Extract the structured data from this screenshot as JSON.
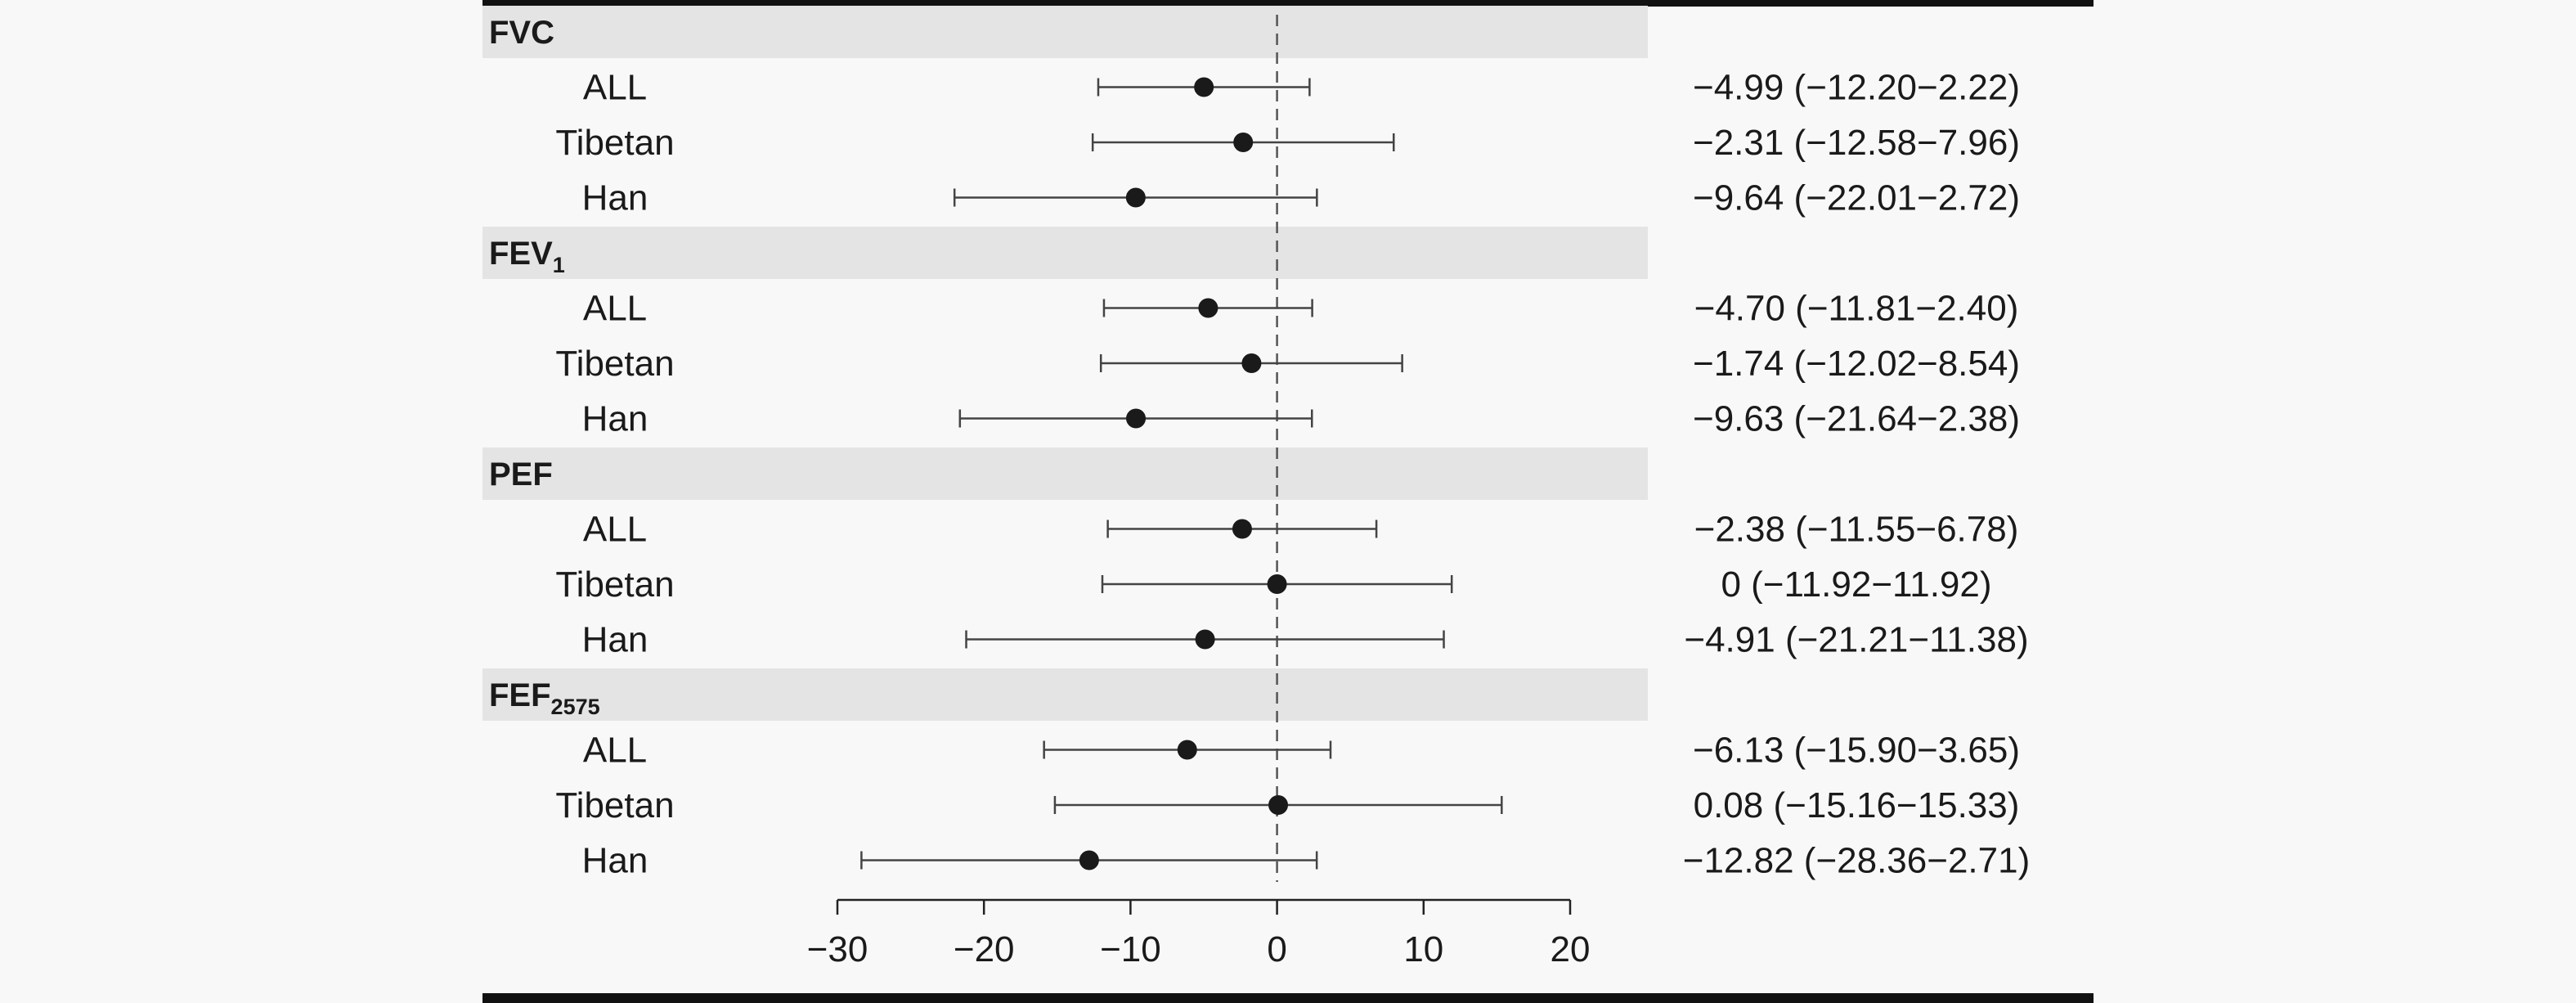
{
  "chart_data": {
    "type": "forest",
    "title": "",
    "xlabel": "",
    "ylabel": "",
    "xlim": [
      -30,
      20
    ],
    "xticks": [
      -30,
      -20,
      -10,
      0,
      10,
      20
    ],
    "xtick_labels": [
      "−30",
      "−20",
      "−10",
      "0",
      "10",
      "20"
    ],
    "reference_line": 0,
    "grid": false,
    "colors": {
      "point": "#1a1a1a",
      "header_band": "#e4e4e4",
      "frame": "#111111",
      "background": "#f8f8f8"
    },
    "groups": [
      {
        "header": "FVC",
        "header_sub": "",
        "rows": [
          {
            "label": "ALL",
            "estimate": -4.99,
            "lower": -12.2,
            "upper": 2.22,
            "ci_text": "−4.99 (−12.20−2.22)"
          },
          {
            "label": "Tibetan",
            "estimate": -2.31,
            "lower": -12.58,
            "upper": 7.96,
            "ci_text": "−2.31 (−12.58−7.96)"
          },
          {
            "label": "Han",
            "estimate": -9.64,
            "lower": -22.01,
            "upper": 2.72,
            "ci_text": "−9.64 (−22.01−2.72)"
          }
        ]
      },
      {
        "header": "FEV",
        "header_sub": "1",
        "rows": [
          {
            "label": "ALL",
            "estimate": -4.7,
            "lower": -11.81,
            "upper": 2.4,
            "ci_text": "−4.70 (−11.81−2.40)"
          },
          {
            "label": "Tibetan",
            "estimate": -1.74,
            "lower": -12.02,
            "upper": 8.54,
            "ci_text": "−1.74 (−12.02−8.54)"
          },
          {
            "label": "Han",
            "estimate": -9.63,
            "lower": -21.64,
            "upper": 2.38,
            "ci_text": "−9.63 (−21.64−2.38)"
          }
        ]
      },
      {
        "header": "PEF",
        "header_sub": "",
        "rows": [
          {
            "label": "ALL",
            "estimate": -2.38,
            "lower": -11.55,
            "upper": 6.78,
            "ci_text": "−2.38 (−11.55−6.78)"
          },
          {
            "label": "Tibetan",
            "estimate": 0,
            "lower": -11.92,
            "upper": 11.92,
            "ci_text": "0 (−11.92−11.92)"
          },
          {
            "label": "Han",
            "estimate": -4.91,
            "lower": -21.21,
            "upper": 11.38,
            "ci_text": "−4.91 (−21.21−11.38)"
          }
        ]
      },
      {
        "header": "FEF",
        "header_sub": "2575",
        "rows": [
          {
            "label": "ALL",
            "estimate": -6.13,
            "lower": -15.9,
            "upper": 3.65,
            "ci_text": "−6.13 (−15.90−3.65)"
          },
          {
            "label": "Tibetan",
            "estimate": 0.08,
            "lower": -15.16,
            "upper": 15.33,
            "ci_text": "0.08 (−15.16−15.33)"
          },
          {
            "label": "Han",
            "estimate": -12.82,
            "lower": -28.36,
            "upper": 2.71,
            "ci_text": "−12.82 (−28.36−2.71)"
          }
        ]
      }
    ]
  }
}
